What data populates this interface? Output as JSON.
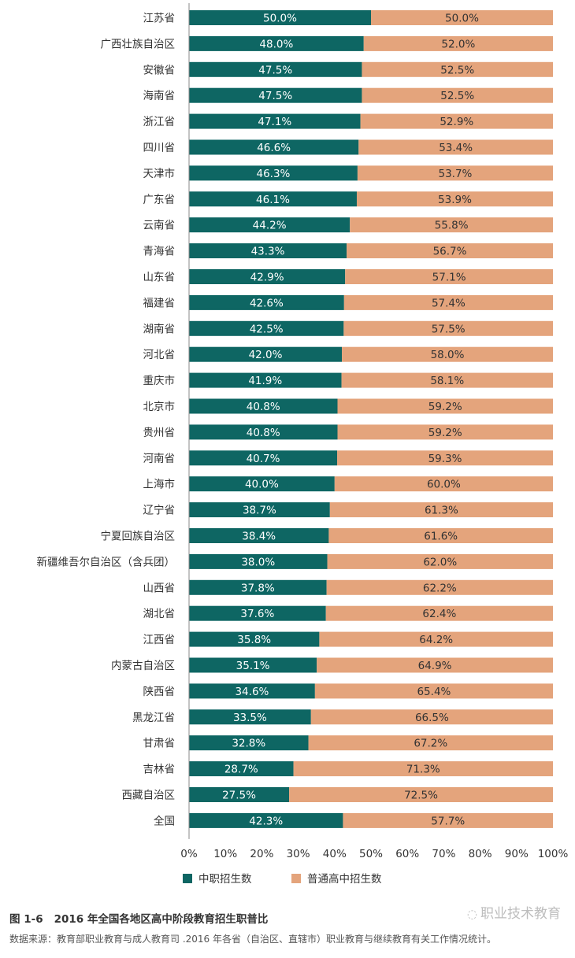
{
  "chart_data": {
    "type": "bar",
    "orientation": "horizontal",
    "stacked": true,
    "categories": [
      "江苏省",
      "广西壮族自治区",
      "安徽省",
      "海南省",
      "浙江省",
      "四川省",
      "天津市",
      "广东省",
      "云南省",
      "青海省",
      "山东省",
      "福建省",
      "湖南省",
      "河北省",
      "重庆市",
      "北京市",
      "贵州省",
      "河南省",
      "上海市",
      "辽宁省",
      "宁夏回族自治区",
      "新疆维吾尔自治区（含兵团）",
      "山西省",
      "湖北省",
      "江西省",
      "内蒙古自治区",
      "陕西省",
      "黑龙江省",
      "甘肃省",
      "吉林省",
      "西藏自治区",
      "全国"
    ],
    "series": [
      {
        "name": "中职招生数",
        "color": "#0e6663",
        "values": [
          50.0,
          48.0,
          47.5,
          47.5,
          47.1,
          46.6,
          46.3,
          46.1,
          44.2,
          43.3,
          42.9,
          42.6,
          42.5,
          42.0,
          41.9,
          40.8,
          40.8,
          40.7,
          40.0,
          38.7,
          38.4,
          38.0,
          37.8,
          37.6,
          35.8,
          35.1,
          34.6,
          33.5,
          32.8,
          28.7,
          27.5,
          42.3
        ]
      },
      {
        "name": "普通高中招生数",
        "color": "#e4a47c",
        "values": [
          50.0,
          52.0,
          52.5,
          52.5,
          52.9,
          53.4,
          53.7,
          53.9,
          55.8,
          56.7,
          57.1,
          57.4,
          57.5,
          58.0,
          58.1,
          59.2,
          59.2,
          59.3,
          60.0,
          61.3,
          61.6,
          62.0,
          62.2,
          62.4,
          64.2,
          64.9,
          65.4,
          66.5,
          67.2,
          71.3,
          72.5,
          57.7
        ]
      }
    ],
    "xlim": [
      0,
      100
    ],
    "xticks": [
      "0%",
      "10%",
      "20%",
      "30%",
      "40%",
      "50%",
      "60%",
      "70%",
      "80%",
      "90%",
      "100%"
    ],
    "value_suffix": "%",
    "legend_position": "bottom-left",
    "grid": false
  },
  "caption": {
    "figure_no": "图 1-6",
    "title": "2016 年全国各地区高中阶段教育招生职普比"
  },
  "source_note": "数据来源：教育部职业教育与成人教育司 .2016 年各省（自治区、直辖市）职业教育与继续教育有关工作情况统计。",
  "watermark": "职业技术教育"
}
